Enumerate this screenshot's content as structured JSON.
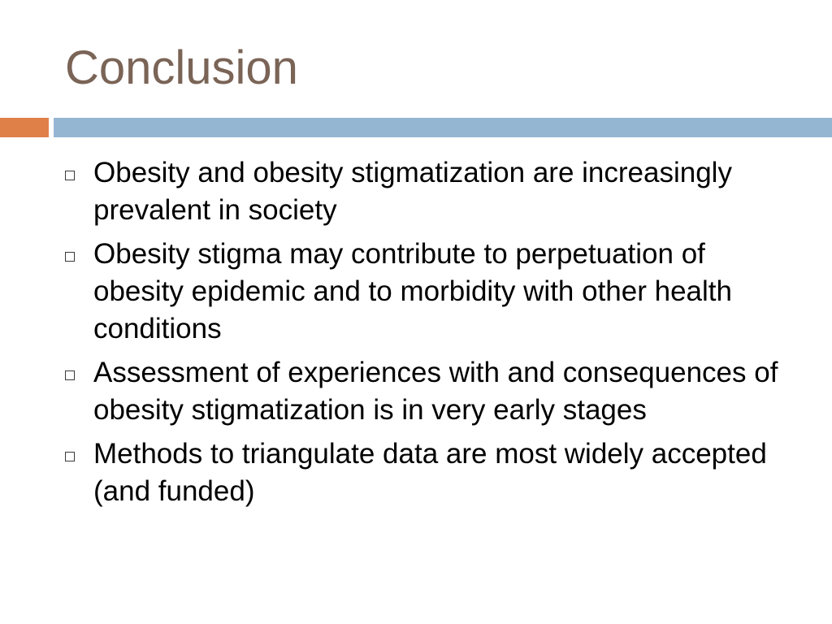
{
  "slide": {
    "title": "Conclusion",
    "accent_colors": {
      "title": "#7a6456",
      "bar_left": "#df8048",
      "bar_right": "#94b6d2"
    },
    "bullet_icon": "hollow-square-icon",
    "bullets": [
      {
        "text": "Obesity and obesity stigmatization are increasingly prevalent in society"
      },
      {
        "text": "Obesity stigma may contribute to perpetuation of obesity epidemic and to morbidity with other health conditions"
      },
      {
        "text": "Assessment of experiences with and consequences of obesity stigmatization is in very early stages"
      },
      {
        "text": "Methods to triangulate data are most widely accepted (and funded)"
      }
    ]
  }
}
